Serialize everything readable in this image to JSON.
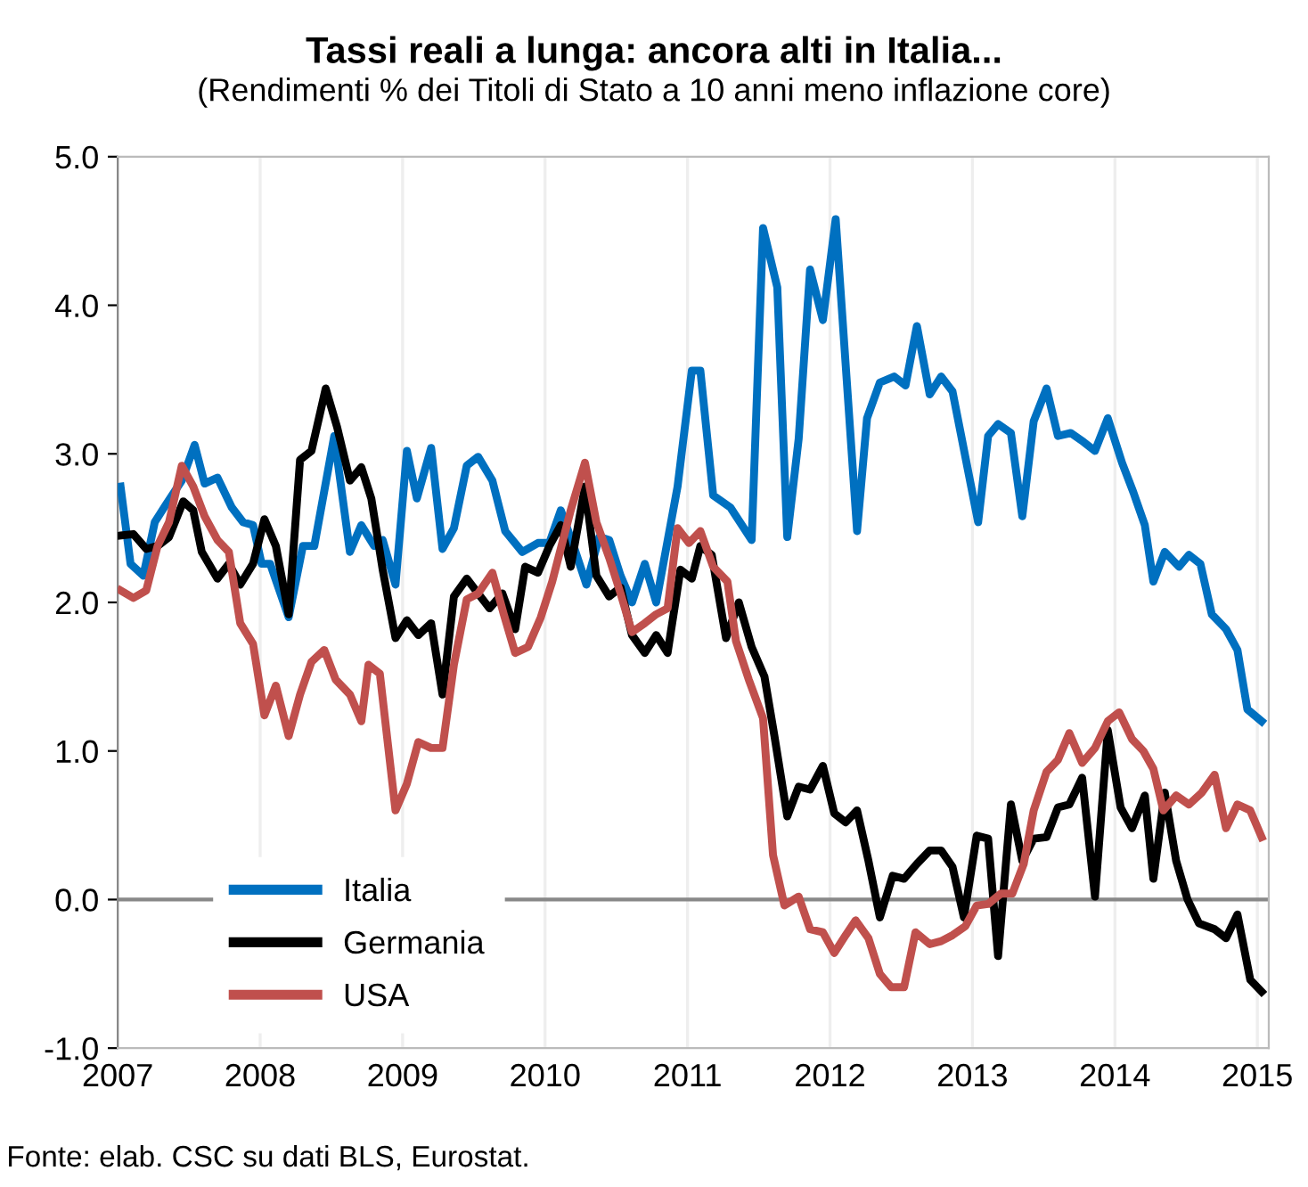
{
  "chart_data": {
    "type": "line",
    "title": "Tassi reali a lunga: ancora alti in Italia...",
    "subtitle": "(Rendimenti % dei Titoli di Stato a 10 anni meno inflazione core)",
    "annotations": [
      "Fonte: elab. CSC su dati BLS, Eurostat."
    ],
    "xlim": [
      2007,
      2015.08
    ],
    "xticks": [
      2007,
      2008,
      2009,
      2010,
      2011,
      2012,
      2013,
      2014,
      2015
    ],
    "ylim": [
      -1,
      5
    ],
    "yticks": [
      {
        "value": -1,
        "label": "-1.0"
      },
      {
        "value": 0,
        "label": "0.0"
      },
      {
        "value": 1,
        "label": "1.0"
      },
      {
        "value": 2,
        "label": "2.0"
      },
      {
        "value": 3,
        "label": "3.0"
      },
      {
        "value": 4,
        "label": "4.0"
      },
      {
        "value": 5,
        "label": "5.0"
      }
    ],
    "grid": "x",
    "legend": "bottom left",
    "marker": "none",
    "line_style": "solid",
    "ref_lines": [
      {
        "axis": "y",
        "value": 0,
        "color": "#888888"
      }
    ],
    "series": [
      {
        "name": "Italia",
        "color": "#0070c0",
        "x": [
          2007.02,
          2007.09,
          2007.18,
          2007.26,
          2007.34,
          2007.45,
          2007.54,
          2007.61,
          2007.7,
          2007.8,
          2007.88,
          2007.95,
          2008.01,
          2008.07,
          2008.2,
          2008.3,
          2008.38,
          2008.52,
          2008.63,
          2008.71,
          2008.8,
          2008.86,
          2008.95,
          2009.03,
          2009.1,
          2009.2,
          2009.28,
          2009.36,
          2009.45,
          2009.53,
          2009.63,
          2009.72,
          2009.84,
          2009.95,
          2010.03,
          2010.11,
          2010.2,
          2010.29,
          2010.38,
          2010.45,
          2010.53,
          2010.61,
          2010.7,
          2010.78,
          2010.93,
          2011.03,
          2011.09,
          2011.18,
          2011.3,
          2011.45,
          2011.53,
          2011.63,
          2011.7,
          2011.78,
          2011.86,
          2011.95,
          2012.04,
          2012.19,
          2012.26,
          2012.35,
          2012.45,
          2012.53,
          2012.61,
          2012.7,
          2012.78,
          2012.86,
          2012.95,
          2013.04,
          2013.11,
          2013.18,
          2013.27,
          2013.35,
          2013.43,
          2013.52,
          2013.6,
          2013.69,
          2013.78,
          2013.86,
          2013.95,
          2014.05,
          2014.13,
          2014.21,
          2014.27,
          2014.35,
          2014.45,
          2014.52,
          2014.6,
          2014.68,
          2014.78,
          2014.86,
          2014.93,
          2015.03
        ],
        "values": [
          2.78,
          2.26,
          2.18,
          2.54,
          2.66,
          2.82,
          3.06,
          2.8,
          2.84,
          2.64,
          2.54,
          2.52,
          2.26,
          2.26,
          1.9,
          2.38,
          2.38,
          3.12,
          2.34,
          2.52,
          2.38,
          2.42,
          2.12,
          3.02,
          2.7,
          3.04,
          2.36,
          2.5,
          2.92,
          2.98,
          2.82,
          2.48,
          2.34,
          2.4,
          2.4,
          2.62,
          2.38,
          2.12,
          2.44,
          2.42,
          2.18,
          2.0,
          2.26,
          2.0,
          2.78,
          3.56,
          3.56,
          2.72,
          2.64,
          2.42,
          4.52,
          4.12,
          2.44,
          3.1,
          4.24,
          3.9,
          4.58,
          2.48,
          3.24,
          3.48,
          3.52,
          3.46,
          3.86,
          3.4,
          3.52,
          3.42,
          2.98,
          2.54,
          3.12,
          3.2,
          3.14,
          2.58,
          3.22,
          3.44,
          3.12,
          3.14,
          3.08,
          3.02,
          3.24,
          2.94,
          2.74,
          2.52,
          2.14,
          2.34,
          2.24,
          2.32,
          2.26,
          1.92,
          1.82,
          1.68,
          1.28,
          1.2
        ]
      },
      {
        "name": "Germania",
        "color": "#000000",
        "x": [
          2007.02,
          2007.11,
          2007.2,
          2007.28,
          2007.36,
          2007.46,
          2007.53,
          2007.59,
          2007.7,
          2007.78,
          2007.86,
          2007.95,
          2008.03,
          2008.11,
          2008.2,
          2008.28,
          2008.36,
          2008.46,
          2008.54,
          2008.63,
          2008.71,
          2008.78,
          2008.86,
          2008.95,
          2009.03,
          2009.11,
          2009.2,
          2009.28,
          2009.36,
          2009.45,
          2009.53,
          2009.61,
          2009.7,
          2009.79,
          2009.86,
          2009.95,
          2010.03,
          2010.11,
          2010.18,
          2010.28,
          2010.36,
          2010.45,
          2010.53,
          2010.61,
          2010.7,
          2010.78,
          2010.86,
          2010.95,
          2011.03,
          2011.09,
          2011.17,
          2011.27,
          2011.36,
          2011.45,
          2011.54,
          2011.61,
          2011.7,
          2011.78,
          2011.86,
          2011.95,
          2012.03,
          2012.11,
          2012.19,
          2012.27,
          2012.35,
          2012.44,
          2012.52,
          2012.61,
          2012.7,
          2012.78,
          2012.86,
          2012.94,
          2013.03,
          2013.11,
          2013.18,
          2013.27,
          2013.35,
          2013.43,
          2013.52,
          2013.6,
          2013.68,
          2013.77,
          2013.86,
          2013.95,
          2014.04,
          2014.12,
          2014.21,
          2014.27,
          2014.35,
          2014.43,
          2014.51,
          2014.59,
          2014.7,
          2014.78,
          2014.86,
          2014.95,
          2015.03
        ],
        "values": [
          2.45,
          2.46,
          2.36,
          2.38,
          2.44,
          2.68,
          2.62,
          2.34,
          2.16,
          2.26,
          2.12,
          2.26,
          2.56,
          2.38,
          1.92,
          2.96,
          3.02,
          3.44,
          3.18,
          2.82,
          2.91,
          2.7,
          2.22,
          1.76,
          1.88,
          1.78,
          1.86,
          1.38,
          2.04,
          2.16,
          2.06,
          1.96,
          2.06,
          1.82,
          2.24,
          2.2,
          2.38,
          2.52,
          2.24,
          2.78,
          2.18,
          2.04,
          2.1,
          1.78,
          1.66,
          1.78,
          1.66,
          2.22,
          2.16,
          2.38,
          2.32,
          1.76,
          2.0,
          1.7,
          1.5,
          1.1,
          0.56,
          0.76,
          0.74,
          0.9,
          0.58,
          0.52,
          0.6,
          0.26,
          -0.12,
          0.16,
          0.14,
          0.24,
          0.33,
          0.33,
          0.22,
          -0.12,
          0.43,
          0.41,
          -0.38,
          0.64,
          0.26,
          0.41,
          0.42,
          0.62,
          0.64,
          0.82,
          0.02,
          1.14,
          0.62,
          0.48,
          0.7,
          0.14,
          0.72,
          0.26,
          0.0,
          -0.16,
          -0.2,
          -0.26,
          -0.1,
          -0.54,
          -0.62
        ]
      },
      {
        "name": "USA",
        "color": "#c0504d",
        "x": [
          2007.02,
          2007.11,
          2007.2,
          2007.28,
          2007.36,
          2007.45,
          2007.53,
          2007.61,
          2007.7,
          2007.78,
          2007.86,
          2007.95,
          2008.03,
          2008.11,
          2008.2,
          2008.28,
          2008.36,
          2008.45,
          2008.53,
          2008.63,
          2008.71,
          2008.76,
          2008.84,
          2008.95,
          2009.03,
          2009.11,
          2009.2,
          2009.28,
          2009.36,
          2009.45,
          2009.53,
          2009.63,
          2009.71,
          2009.79,
          2009.88,
          2009.97,
          2010.05,
          2010.18,
          2010.28,
          2010.36,
          2010.45,
          2010.53,
          2010.61,
          2010.7,
          2010.78,
          2010.86,
          2010.93,
          2011.01,
          2011.09,
          2011.18,
          2011.28,
          2011.34,
          2011.43,
          2011.53,
          2011.6,
          2011.68,
          2011.78,
          2011.86,
          2011.95,
          2012.03,
          2012.11,
          2012.18,
          2012.27,
          2012.35,
          2012.43,
          2012.52,
          2012.6,
          2012.7,
          2012.78,
          2012.86,
          2012.95,
          2013.03,
          2013.11,
          2013.2,
          2013.28,
          2013.36,
          2013.43,
          2013.52,
          2013.6,
          2013.68,
          2013.77,
          2013.86,
          2013.95,
          2014.03,
          2014.12,
          2014.2,
          2014.27,
          2014.34,
          2014.43,
          2014.52,
          2014.61,
          2014.7,
          2014.78,
          2014.86,
          2014.95,
          2015.03
        ],
        "values": [
          2.08,
          2.03,
          2.08,
          2.38,
          2.54,
          2.92,
          2.78,
          2.58,
          2.42,
          2.34,
          1.86,
          1.72,
          1.24,
          1.44,
          1.1,
          1.38,
          1.6,
          1.68,
          1.48,
          1.38,
          1.2,
          1.58,
          1.52,
          0.6,
          0.78,
          1.06,
          1.02,
          1.02,
          1.58,
          2.02,
          2.06,
          2.2,
          1.92,
          1.66,
          1.7,
          1.9,
          2.14,
          2.62,
          2.94,
          2.54,
          2.3,
          2.06,
          1.8,
          1.86,
          1.92,
          1.96,
          2.5,
          2.4,
          2.48,
          2.24,
          2.14,
          1.74,
          1.48,
          1.22,
          0.3,
          -0.04,
          0.02,
          -0.2,
          -0.22,
          -0.36,
          -0.24,
          -0.14,
          -0.26,
          -0.5,
          -0.59,
          -0.59,
          -0.22,
          -0.3,
          -0.28,
          -0.24,
          -0.18,
          -0.04,
          -0.03,
          0.04,
          0.04,
          0.24,
          0.6,
          0.86,
          0.94,
          1.12,
          0.92,
          1.02,
          1.2,
          1.26,
          1.08,
          1.0,
          0.88,
          0.6,
          0.7,
          0.64,
          0.72,
          0.84,
          0.48,
          0.64,
          0.6,
          0.42
        ]
      }
    ]
  }
}
